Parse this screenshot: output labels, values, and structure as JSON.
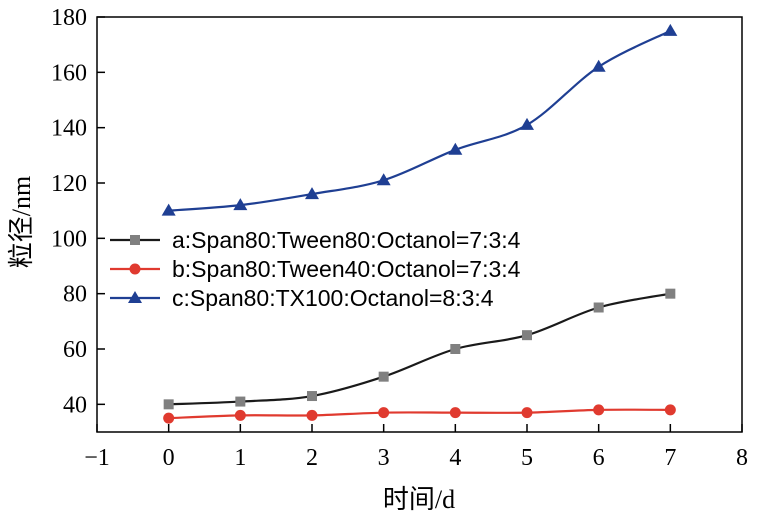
{
  "chart_data": {
    "type": "line",
    "xlabel": "时间/d",
    "ylabel": "粒径/nm",
    "xlim": [
      -1,
      8
    ],
    "ylim": [
      30,
      180
    ],
    "xticks": [
      -1,
      0,
      1,
      2,
      3,
      4,
      5,
      6,
      7,
      8
    ],
    "xtick_labels": [
      "−1",
      "0",
      "1",
      "2",
      "3",
      "4",
      "5",
      "6",
      "7",
      "8"
    ],
    "yticks": [
      40,
      60,
      80,
      100,
      120,
      140,
      160,
      180
    ],
    "ytick_labels": [
      "40",
      "60",
      "80",
      "100",
      "120",
      "140",
      "160",
      "180"
    ],
    "grid": false,
    "legend_position": "center-left",
    "x": [
      0,
      1,
      2,
      3,
      4,
      5,
      6,
      7
    ],
    "series": [
      {
        "name": "a:Span80:Tween80:Octanol=7:3:4",
        "color": "#1a1a1a",
        "marker_color": "#808080",
        "marker": "square",
        "values": [
          40,
          41,
          43,
          50,
          60,
          65,
          75,
          80
        ]
      },
      {
        "name": "b:Span80:Tween40:Octanol=7:3:4",
        "color": "#e03a2f",
        "marker_color": "#e03a2f",
        "marker": "circle",
        "values": [
          35,
          36,
          36,
          37,
          37,
          37,
          38,
          38
        ]
      },
      {
        "name": "c:Span80:TX100:Octanol=8:3:4",
        "color": "#1f3f93",
        "marker_color": "#1f3f93",
        "marker": "triangle",
        "values": [
          110,
          112,
          116,
          121,
          132,
          141,
          162,
          175
        ]
      }
    ]
  }
}
